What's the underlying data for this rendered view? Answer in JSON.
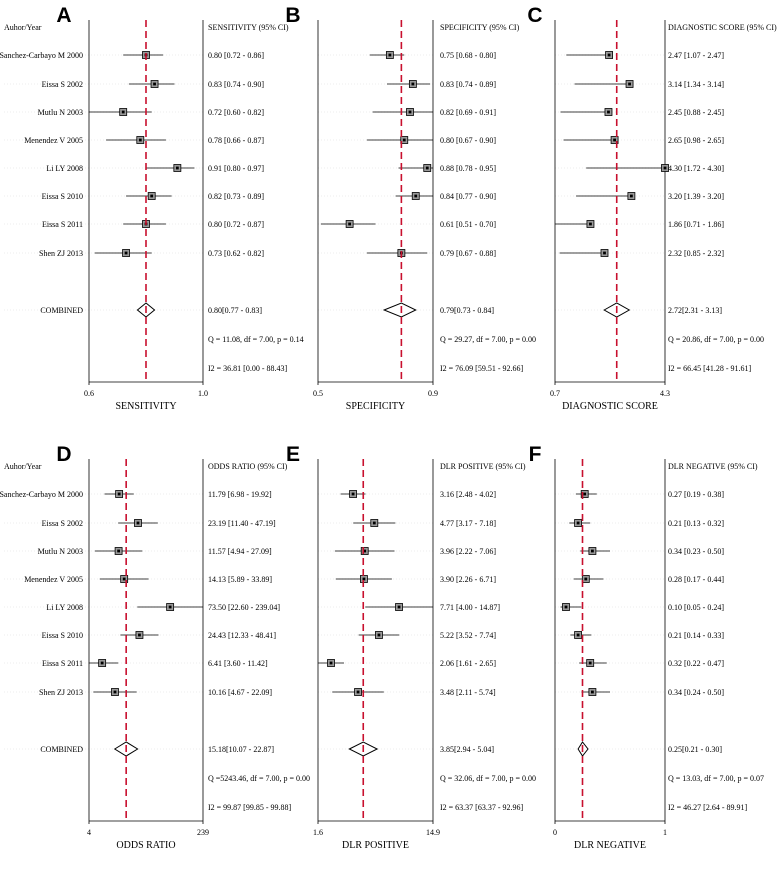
{
  "chart_data": [
    {
      "type": "forest",
      "panel_letter": "A",
      "header_label": "Auhor/Year",
      "column_header": "SENSITIVITY (95% CI)",
      "xlabel": "SENSITIVITY",
      "tick_labels": [
        "0.6",
        "1.0"
      ],
      "xlim": [
        0.6,
        1.0
      ],
      "reference_line": 0.8,
      "studies": [
        {
          "name": "Sanchez-Carbayo M 2000",
          "estimate": 0.8,
          "lower": 0.72,
          "upper": 0.86,
          "ci_text": "0.80 [0.72 - 0.86]"
        },
        {
          "name": "Eissa S 2002",
          "estimate": 0.83,
          "lower": 0.74,
          "upper": 0.9,
          "ci_text": "0.83 [0.74 - 0.90]"
        },
        {
          "name": "Mutlu N 2003",
          "estimate": 0.72,
          "lower": 0.6,
          "upper": 0.82,
          "ci_text": "0.72 [0.60 - 0.82]"
        },
        {
          "name": "Menendez V 2005",
          "estimate": 0.78,
          "lower": 0.66,
          "upper": 0.87,
          "ci_text": "0.78 [0.66 - 0.87]"
        },
        {
          "name": "Li LY 2008",
          "estimate": 0.91,
          "lower": 0.8,
          "upper": 0.97,
          "ci_text": "0.91 [0.80 - 0.97]"
        },
        {
          "name": "Eissa S 2010",
          "estimate": 0.82,
          "lower": 0.73,
          "upper": 0.89,
          "ci_text": "0.82 [0.73 - 0.89]"
        },
        {
          "name": "Eissa S 2011",
          "estimate": 0.8,
          "lower": 0.72,
          "upper": 0.87,
          "ci_text": "0.80 [0.72 - 0.87]"
        },
        {
          "name": "Shen ZJ 2013",
          "estimate": 0.73,
          "lower": 0.62,
          "upper": 0.82,
          "ci_text": "0.73 [0.62 - 0.82]"
        }
      ],
      "combined": {
        "name": "COMBINED",
        "estimate": 0.8,
        "lower": 0.77,
        "upper": 0.83,
        "ci_text": "0.80[0.77 - 0.83]"
      },
      "q_text": "Q = 11.08, df = 7.00, p =  0.14",
      "i2_text": "I2 = 36.81 [0.00 - 88.43]"
    },
    {
      "type": "forest",
      "panel_letter": "B",
      "header_label": "",
      "column_header": "SPECIFICITY (95% CI)",
      "xlabel": "SPECIFICITY",
      "tick_labels": [
        "0.5",
        "0.9"
      ],
      "xlim": [
        0.5,
        0.9
      ],
      "reference_line": 0.79,
      "studies": [
        {
          "name": "Sanchez-Carbayo M 2000",
          "estimate": 0.75,
          "lower": 0.68,
          "upper": 0.8,
          "ci_text": "0.75 [0.68 - 0.80]"
        },
        {
          "name": "Eissa S 2002",
          "estimate": 0.83,
          "lower": 0.74,
          "upper": 0.89,
          "ci_text": "0.83 [0.74 - 0.89]"
        },
        {
          "name": "Mutlu N 2003",
          "estimate": 0.82,
          "lower": 0.69,
          "upper": 0.91,
          "ci_text": "0.82 [0.69 - 0.91]"
        },
        {
          "name": "Menendez V 2005",
          "estimate": 0.8,
          "lower": 0.67,
          "upper": 0.9,
          "ci_text": "0.80 [0.67 - 0.90]"
        },
        {
          "name": "Li LY 2008",
          "estimate": 0.88,
          "lower": 0.78,
          "upper": 0.95,
          "ci_text": "0.88 [0.78 - 0.95]"
        },
        {
          "name": "Eissa S 2010",
          "estimate": 0.84,
          "lower": 0.77,
          "upper": 0.9,
          "ci_text": "0.84 [0.77 - 0.90]"
        },
        {
          "name": "Eissa S 2011",
          "estimate": 0.61,
          "lower": 0.51,
          "upper": 0.7,
          "ci_text": "0.61 [0.51 - 0.70]"
        },
        {
          "name": "Shen ZJ 2013",
          "estimate": 0.79,
          "lower": 0.67,
          "upper": 0.88,
          "ci_text": "0.79 [0.67 - 0.88]"
        }
      ],
      "combined": {
        "name": "COMBINED",
        "estimate": 0.79,
        "lower": 0.73,
        "upper": 0.84,
        "ci_text": "0.79[0.73 - 0.84]"
      },
      "q_text": "Q = 29.27, df = 7.00, p =  0.00",
      "i2_text": "I2 = 76.09 [59.51 - 92.66]"
    },
    {
      "type": "forest",
      "panel_letter": "C",
      "header_label": "",
      "column_header": "DIAGNOSTIC SCORE (95% CI)",
      "xlabel": "DIAGNOSTIC SCORE",
      "tick_labels": [
        "0.7",
        "4.3"
      ],
      "xlim": [
        0.7,
        4.3
      ],
      "reference_line": 2.72,
      "studies": [
        {
          "name": "Sanchez-Carbayo M 2000",
          "estimate": 2.47,
          "lower": 1.07,
          "upper": 2.47,
          "ci_text": "2.47 [1.07 - 2.47]"
        },
        {
          "name": "Eissa S 2002",
          "estimate": 3.14,
          "lower": 1.34,
          "upper": 3.14,
          "ci_text": "3.14 [1.34 - 3.14]"
        },
        {
          "name": "Mutlu N 2003",
          "estimate": 2.45,
          "lower": 0.88,
          "upper": 2.45,
          "ci_text": "2.45 [0.88 - 2.45]"
        },
        {
          "name": "Menendez V 2005",
          "estimate": 2.65,
          "lower": 0.98,
          "upper": 2.65,
          "ci_text": "2.65 [0.98 - 2.65]"
        },
        {
          "name": "Li LY 2008",
          "estimate": 4.3,
          "lower": 1.72,
          "upper": 4.3,
          "ci_text": "4.30 [1.72 - 4.30]"
        },
        {
          "name": "Eissa S 2010",
          "estimate": 3.2,
          "lower": 1.39,
          "upper": 3.2,
          "ci_text": "3.20 [1.39 - 3.20]"
        },
        {
          "name": "Eissa S 2011",
          "estimate": 1.86,
          "lower": 0.71,
          "upper": 1.86,
          "ci_text": "1.86 [0.71 - 1.86]"
        },
        {
          "name": "Shen ZJ 2013",
          "estimate": 2.32,
          "lower": 0.85,
          "upper": 2.32,
          "ci_text": "2.32 [0.85 - 2.32]"
        }
      ],
      "combined": {
        "name": "COMBINED",
        "estimate": 2.72,
        "lower": 2.31,
        "upper": 3.13,
        "ci_text": "2.72[2.31 - 3.13]"
      },
      "q_text": "Q = 20.86, df = 7.00, p =  0.00",
      "i2_text": "I2 = 66.45 [41.28 - 91.61]"
    },
    {
      "type": "forest",
      "panel_letter": "D",
      "header_label": "Auhor/Year",
      "column_header": "ODDS RATIO (95% CI)",
      "xlabel": "ODDS RATIO",
      "tick_labels": [
        "4",
        "239"
      ],
      "xlim": [
        4,
        239
      ],
      "log_scale": true,
      "reference_line": 15.18,
      "studies": [
        {
          "name": "Sanchez-Carbayo M 2000",
          "estimate": 11.79,
          "lower": 6.98,
          "upper": 19.92,
          "ci_text": "11.79 [6.98 - 19.92]"
        },
        {
          "name": "Eissa S 2002",
          "estimate": 23.19,
          "lower": 11.4,
          "upper": 47.19,
          "ci_text": "23.19 [11.40 - 47.19]"
        },
        {
          "name": "Mutlu N 2003",
          "estimate": 11.57,
          "lower": 4.94,
          "upper": 27.09,
          "ci_text": "11.57 [4.94 - 27.09]"
        },
        {
          "name": "Menendez V 2005",
          "estimate": 14.13,
          "lower": 5.89,
          "upper": 33.89,
          "ci_text": "14.13 [5.89 - 33.89]"
        },
        {
          "name": "Li LY 2008",
          "estimate": 73.5,
          "lower": 22.6,
          "upper": 239.04,
          "ci_text": "73.50 [22.60 - 239.04]"
        },
        {
          "name": "Eissa S 2010",
          "estimate": 24.43,
          "lower": 12.33,
          "upper": 48.41,
          "ci_text": "24.43 [12.33 - 48.41]"
        },
        {
          "name": "Eissa S 2011",
          "estimate": 6.41,
          "lower": 3.6,
          "upper": 11.42,
          "ci_text": "6.41 [3.60 - 11.42]"
        },
        {
          "name": "Shen ZJ 2013",
          "estimate": 10.16,
          "lower": 4.67,
          "upper": 22.09,
          "ci_text": "10.16 [4.67 - 22.09]"
        }
      ],
      "combined": {
        "name": "COMBINED",
        "estimate": 15.18,
        "lower": 10.07,
        "upper": 22.87,
        "ci_text": "15.18[10.07 - 22.87]"
      },
      "q_text": "Q =5243.46, df = 7.00, p =  0.00",
      "i2_text": "I2 = 99.87 [99.85 - 99.88]"
    },
    {
      "type": "forest",
      "panel_letter": "E",
      "header_label": "",
      "column_header": "DLR POSITIVE (95% CI)",
      "xlabel": "DLR POSITIVE",
      "tick_labels": [
        "1.6",
        "14.9"
      ],
      "xlim": [
        1.6,
        14.9
      ],
      "log_scale": true,
      "reference_line": 3.85,
      "studies": [
        {
          "name": "Sanchez-Carbayo M 2000",
          "estimate": 3.16,
          "lower": 2.48,
          "upper": 4.02,
          "ci_text": "3.16 [2.48 - 4.02]"
        },
        {
          "name": "Eissa S 2002",
          "estimate": 4.77,
          "lower": 3.17,
          "upper": 7.18,
          "ci_text": "4.77 [3.17 - 7.18]"
        },
        {
          "name": "Mutlu N 2003",
          "estimate": 3.96,
          "lower": 2.22,
          "upper": 7.06,
          "ci_text": "3.96 [2.22 - 7.06]"
        },
        {
          "name": "Menendez V 2005",
          "estimate": 3.9,
          "lower": 2.26,
          "upper": 6.71,
          "ci_text": "3.90 [2.26 - 6.71]"
        },
        {
          "name": "Li LY 2008",
          "estimate": 7.71,
          "lower": 4.0,
          "upper": 14.87,
          "ci_text": "7.71 [4.00 - 14.87]"
        },
        {
          "name": "Eissa S 2010",
          "estimate": 5.22,
          "lower": 3.52,
          "upper": 7.74,
          "ci_text": "5.22 [3.52 - 7.74]"
        },
        {
          "name": "Eissa S 2011",
          "estimate": 2.06,
          "lower": 1.61,
          "upper": 2.65,
          "ci_text": "2.06 [1.61 - 2.65]"
        },
        {
          "name": "Shen ZJ 2013",
          "estimate": 3.48,
          "lower": 2.11,
          "upper": 5.74,
          "ci_text": "3.48 [2.11 - 5.74]"
        }
      ],
      "combined": {
        "name": "COMBINED",
        "estimate": 3.85,
        "lower": 2.94,
        "upper": 5.04,
        "ci_text": "3.85[2.94 - 5.04]"
      },
      "q_text": "Q = 32.06, df = 7.00, p =  0.00",
      "i2_text": "I2 = 63.37 [63.37 - 92.96]"
    },
    {
      "type": "forest",
      "panel_letter": "F",
      "header_label": "",
      "column_header": "DLR NEGATIVE (95% CI)",
      "xlabel": "DLR NEGATIVE",
      "tick_labels": [
        "0",
        "1"
      ],
      "xlim": [
        0,
        1
      ],
      "reference_line": 0.25,
      "studies": [
        {
          "name": "Sanchez-Carbayo M 2000",
          "estimate": 0.27,
          "lower": 0.19,
          "upper": 0.38,
          "ci_text": "0.27 [0.19 - 0.38]"
        },
        {
          "name": "Eissa S 2002",
          "estimate": 0.21,
          "lower": 0.13,
          "upper": 0.32,
          "ci_text": "0.21 [0.13 - 0.32]"
        },
        {
          "name": "Mutlu N 2003",
          "estimate": 0.34,
          "lower": 0.23,
          "upper": 0.5,
          "ci_text": "0.34 [0.23 - 0.50]"
        },
        {
          "name": "Menendez V 2005",
          "estimate": 0.28,
          "lower": 0.17,
          "upper": 0.44,
          "ci_text": "0.28 [0.17 - 0.44]"
        },
        {
          "name": "Li LY 2008",
          "estimate": 0.1,
          "lower": 0.05,
          "upper": 0.24,
          "ci_text": "0.10 [0.05 - 0.24]"
        },
        {
          "name": "Eissa S 2010",
          "estimate": 0.21,
          "lower": 0.14,
          "upper": 0.33,
          "ci_text": "0.21 [0.14 - 0.33]"
        },
        {
          "name": "Eissa S 2011",
          "estimate": 0.32,
          "lower": 0.22,
          "upper": 0.47,
          "ci_text": "0.32 [0.22 - 0.47]"
        },
        {
          "name": "Shen ZJ 2013",
          "estimate": 0.34,
          "lower": 0.24,
          "upper": 0.5,
          "ci_text": "0.34 [0.24 - 0.50]"
        }
      ],
      "combined": {
        "name": "COMBINED",
        "estimate": 0.25,
        "lower": 0.21,
        "upper": 0.3,
        "ci_text": "0.25[0.21 - 0.30]"
      },
      "q_text": "Q = 13.03, df = 7.00, p =  0.07",
      "i2_text": "I2 = 46.27 [2.64 - 89.91]"
    }
  ],
  "colors": {
    "reference_line": "#c8102e",
    "marker": "#000000",
    "gridline": "#d9d9d9",
    "axis": "#000000"
  }
}
